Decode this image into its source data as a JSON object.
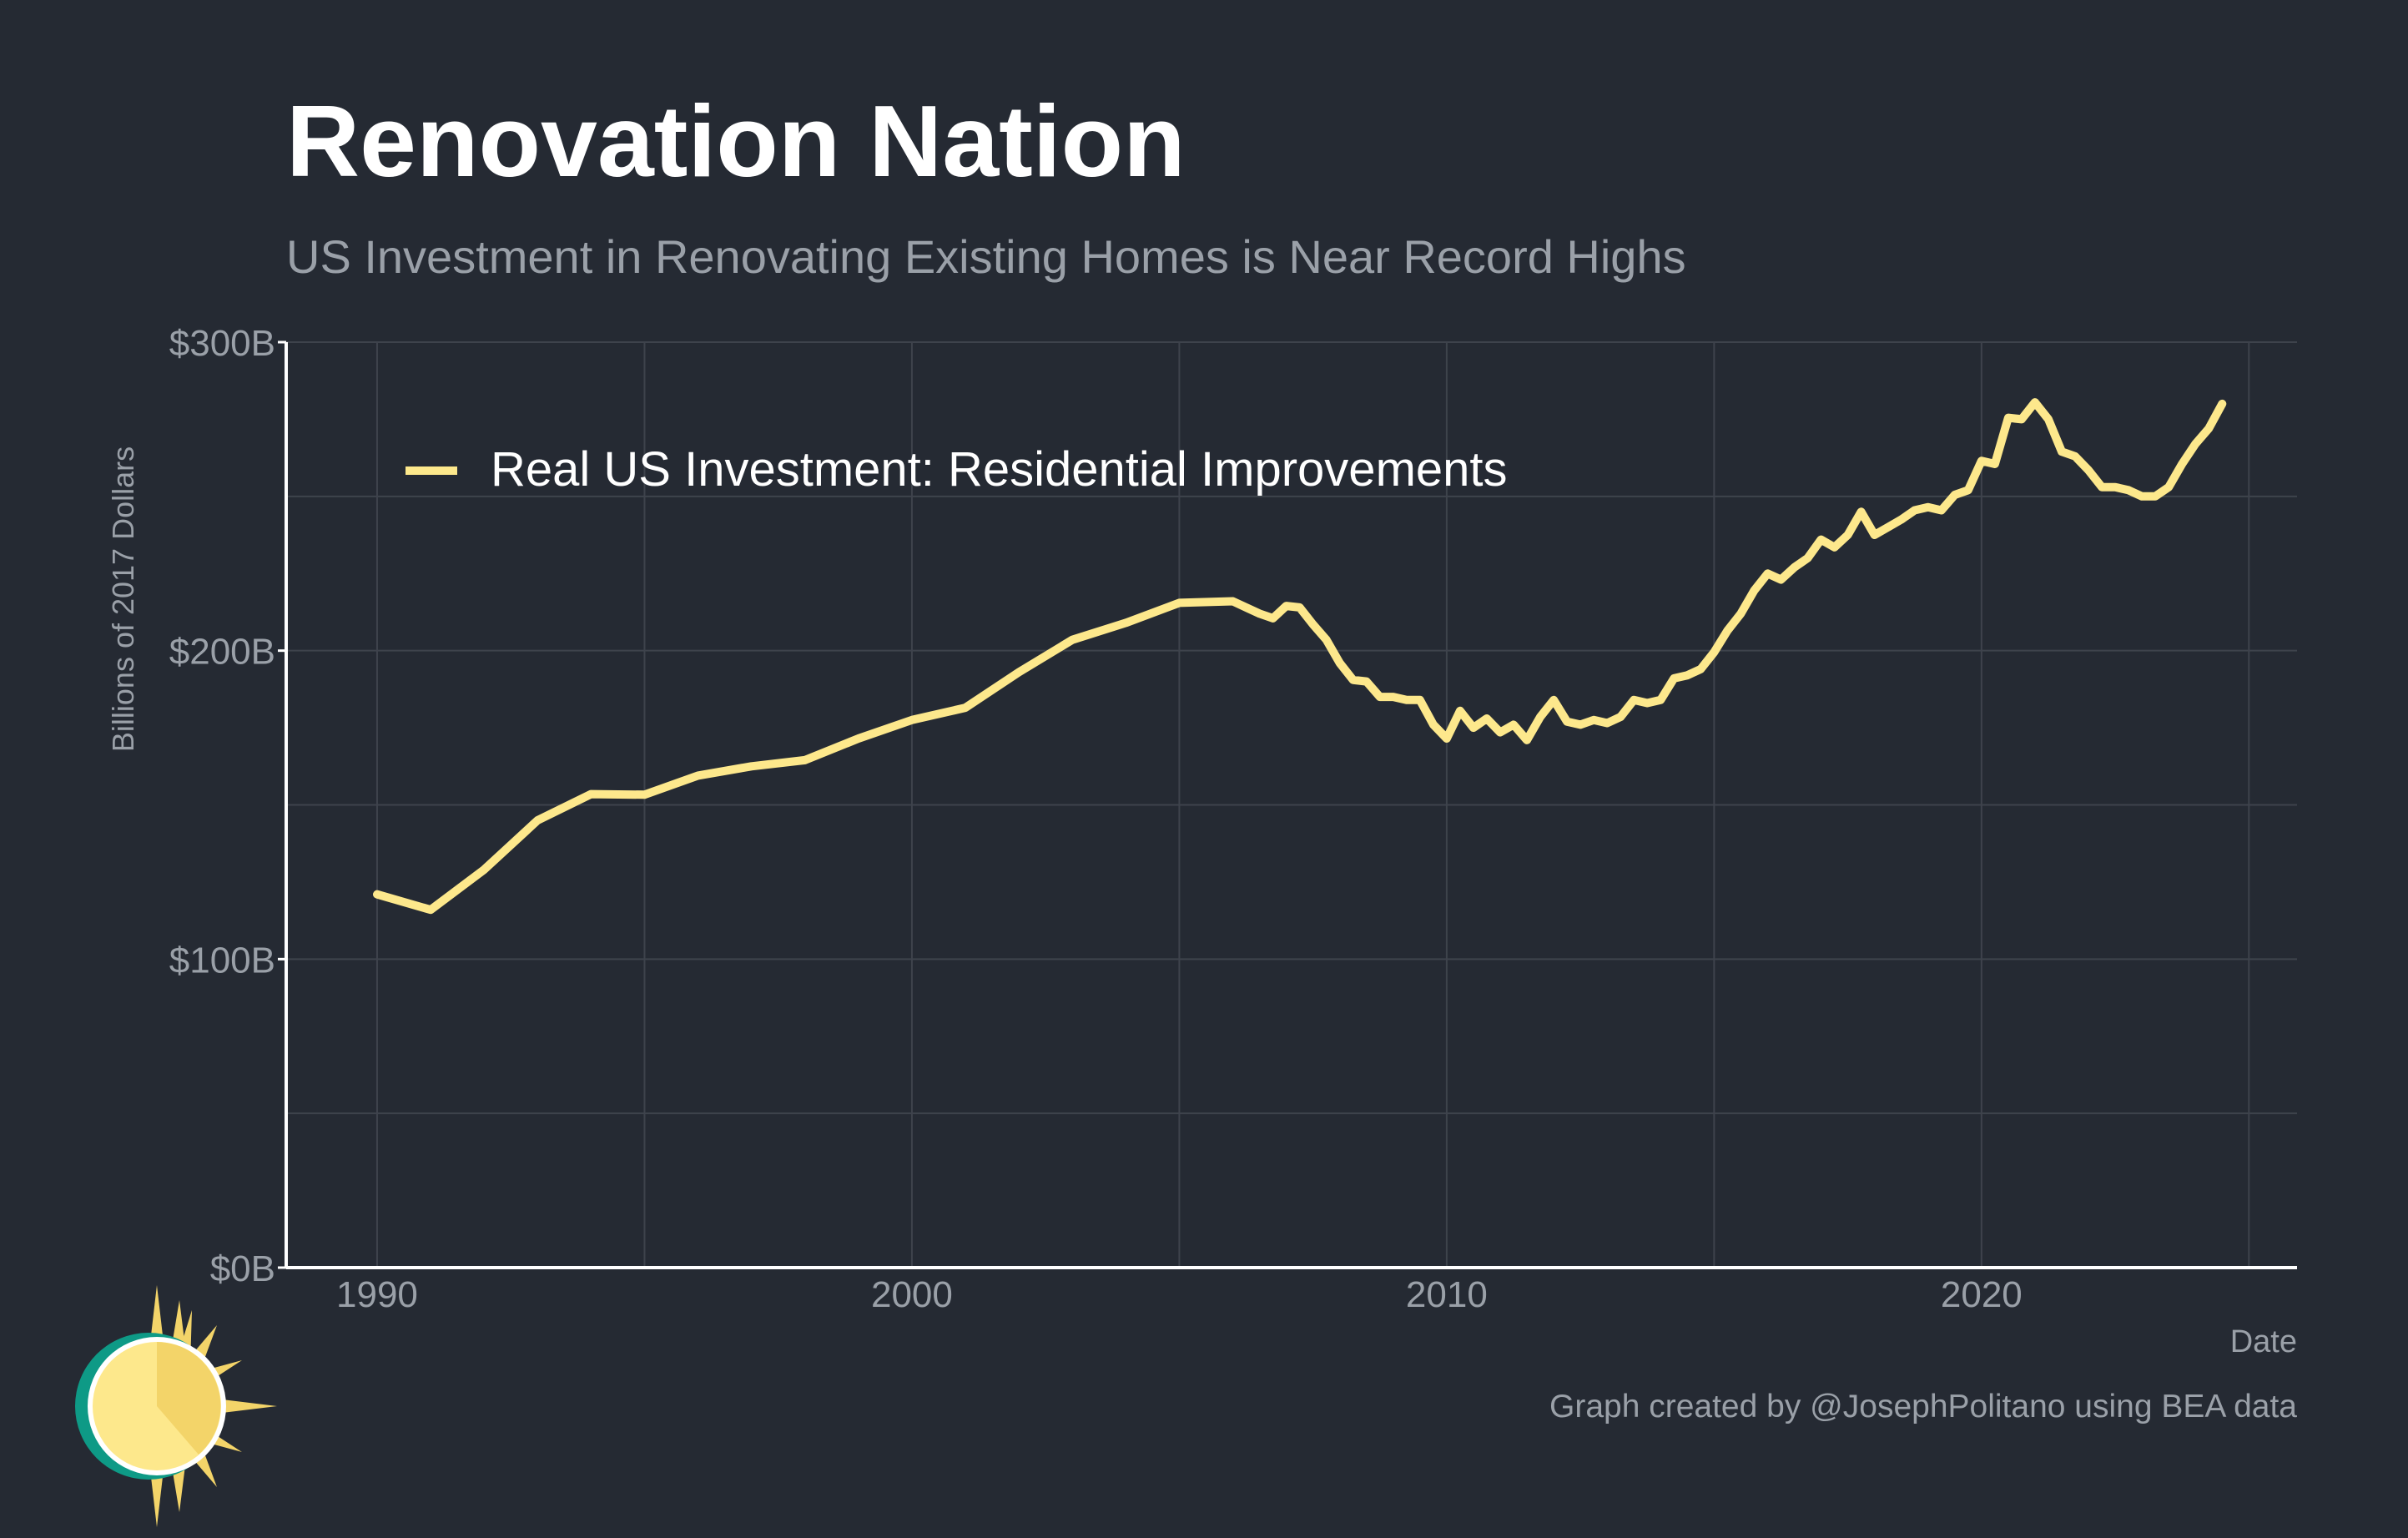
{
  "chart_data": {
    "type": "line",
    "title": "Renovation Nation",
    "subtitle": "US Investment in Renovating Existing Homes is Near Record Highs",
    "xlabel": "Date",
    "ylabel": "Billions of 2017 Dollars",
    "xlim": [
      1988.3,
      2025.9
    ],
    "ylim": [
      0,
      300
    ],
    "x_ticks": [
      1990,
      2000,
      2010,
      2020
    ],
    "y_ticks": [
      0,
      100,
      200,
      300
    ],
    "y_tick_labels": [
      "$0B",
      "$100B",
      "$200B",
      "$300B"
    ],
    "grid": true,
    "legend_position": "top-left",
    "series": [
      {
        "name": "Real US Investment: Residential Improvements",
        "color": "#fde88c",
        "x": [
          1990,
          1991,
          1992,
          1993,
          1994,
          1995,
          1996,
          1997,
          1998,
          1999,
          2000,
          2001,
          2002,
          2003,
          2004,
          2005,
          2006,
          2006.25,
          2006.5,
          2006.75,
          2007,
          2007.25,
          2007.5,
          2007.75,
          2008,
          2008.25,
          2008.5,
          2008.75,
          2009,
          2009.25,
          2009.5,
          2009.75,
          2010,
          2010.25,
          2010.5,
          2010.75,
          2011,
          2011.25,
          2011.5,
          2011.75,
          2012,
          2012.25,
          2012.5,
          2012.75,
          2013,
          2013.25,
          2013.5,
          2013.75,
          2014,
          2014.25,
          2014.5,
          2014.75,
          2015,
          2015.25,
          2015.5,
          2015.75,
          2016,
          2016.25,
          2016.5,
          2016.75,
          2017,
          2017.25,
          2017.5,
          2017.75,
          2018,
          2018.25,
          2018.5,
          2018.75,
          2019,
          2019.25,
          2019.5,
          2019.75,
          2020,
          2020.25,
          2020.5,
          2020.75,
          2021,
          2021.25,
          2021.5,
          2021.75,
          2022,
          2022.25,
          2022.5,
          2022.75,
          2023,
          2023.25,
          2023.5,
          2023.75,
          2024,
          2024.25,
          2024.5
        ],
        "values": [
          121,
          116,
          129,
          145,
          153.5,
          153.3,
          159.5,
          162.5,
          164.5,
          171.5,
          177.5,
          181.5,
          193,
          203.5,
          209,
          215.5,
          216,
          214,
          212,
          210.5,
          214.5,
          214,
          208.5,
          203.5,
          196,
          190.5,
          190,
          185,
          185,
          184,
          184,
          176,
          171.5,
          180.5,
          175,
          178,
          173.5,
          176,
          171,
          178.5,
          184,
          177,
          176,
          177.5,
          176.5,
          178.5,
          184,
          183,
          184,
          191,
          192,
          194,
          199.5,
          206.5,
          212,
          219.5,
          225,
          223,
          227,
          230,
          236,
          233.5,
          237.5,
          245,
          237.5,
          240,
          242.5,
          245.5,
          246.5,
          245.5,
          250.5,
          252,
          261.5,
          260.5,
          275.5,
          275,
          280.5,
          275,
          264.5,
          263,
          258.5,
          253,
          253,
          252,
          250,
          250,
          253,
          260.5,
          267,
          272,
          280
        ]
      }
    ]
  },
  "footer": {
    "credit": "Graph created by @JosephPolitano using BEA data"
  },
  "icons": {
    "logo": "sun-icon"
  }
}
